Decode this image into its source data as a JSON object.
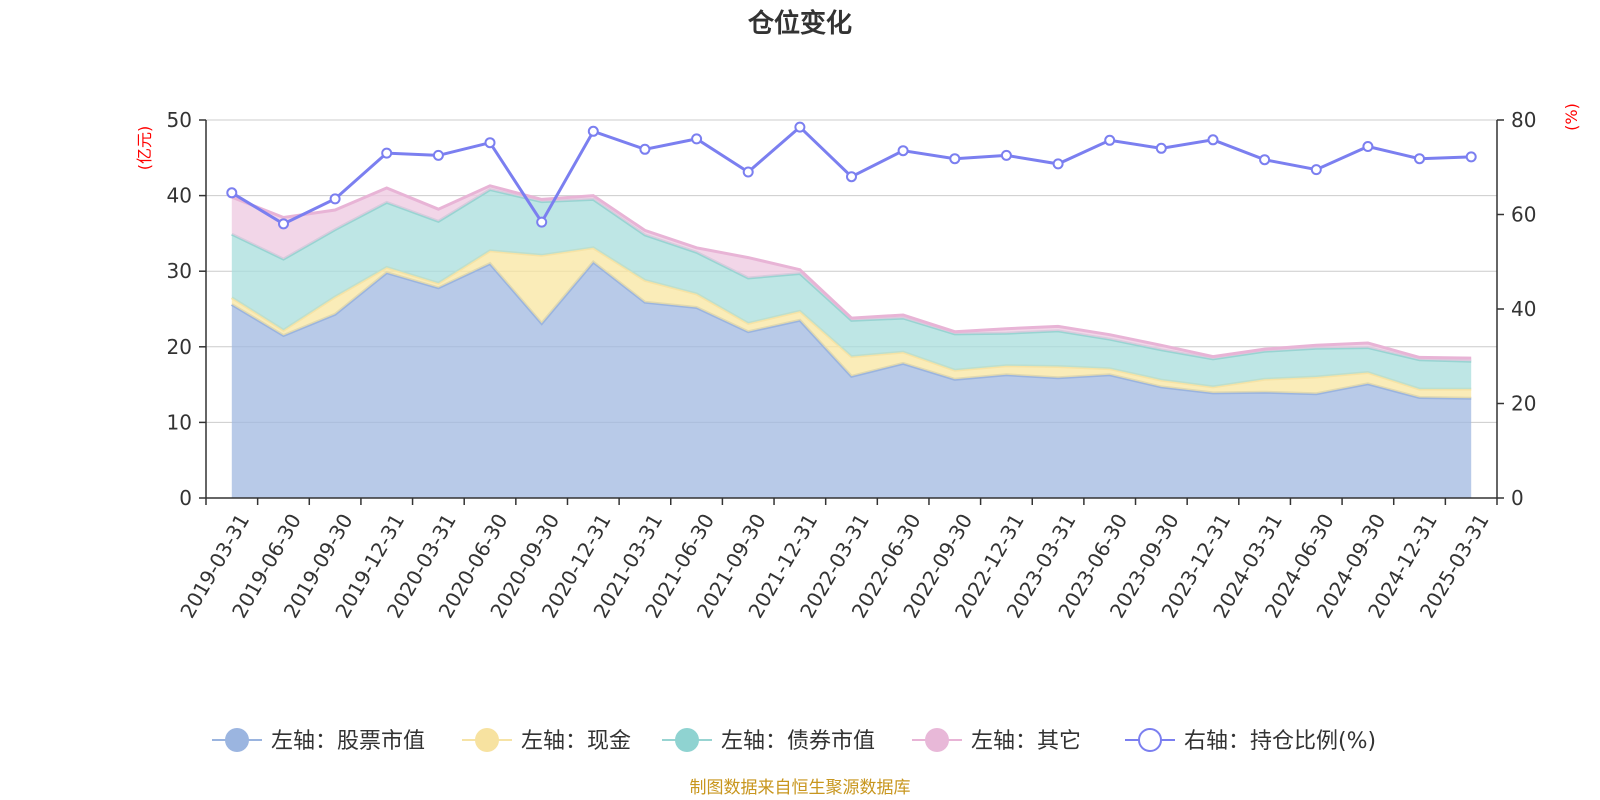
{
  "title": "仓位变化",
  "left_unit": "(亿元)",
  "right_unit": "(%)",
  "source": "制图数据来自恒生聚源数据库",
  "chart_data": {
    "type": "area",
    "title": "仓位变化",
    "categories": [
      "2019-03-31",
      "2019-06-30",
      "2019-09-30",
      "2019-12-31",
      "2020-03-31",
      "2020-06-30",
      "2020-09-30",
      "2020-12-31",
      "2021-03-31",
      "2021-06-30",
      "2021-09-30",
      "2021-12-31",
      "2022-03-31",
      "2022-06-30",
      "2022-09-30",
      "2022-12-31",
      "2023-03-31",
      "2023-06-30",
      "2023-09-30",
      "2023-12-31",
      "2024-03-31",
      "2024-06-30",
      "2024-09-30",
      "2024-12-31",
      "2025-03-31"
    ],
    "left_axis": {
      "label": "(亿元)",
      "min": 0,
      "max": 50,
      "ticks": [
        0,
        10,
        20,
        30,
        40,
        50
      ]
    },
    "right_axis": {
      "label": "(%)",
      "min": 0,
      "max": 80,
      "ticks": [
        0,
        20,
        40,
        60,
        80
      ]
    },
    "stacked": true,
    "grid": true,
    "legend_position": "bottom",
    "series": [
      {
        "name": "左轴：股票市值",
        "axis": "left",
        "color": "#a0b8e0",
        "line": "#9ab4df",
        "values": [
          25.6,
          21.5,
          24.3,
          29.8,
          27.8,
          31.0,
          23.1,
          31.2,
          25.9,
          25.2,
          22.0,
          23.5,
          16.1,
          17.8,
          15.7,
          16.3,
          15.9,
          16.3,
          14.7,
          13.9,
          14.0,
          13.8,
          15.1,
          13.3,
          13.2
        ]
      },
      {
        "name": "左轴：现金",
        "axis": "left",
        "color": "#f8e6a0",
        "line": "#f6e3a6",
        "values": [
          0.9,
          0.7,
          2.3,
          0.7,
          0.6,
          1.7,
          9.0,
          1.9,
          2.9,
          1.8,
          1.1,
          1.2,
          2.6,
          1.5,
          1.2,
          1.2,
          1.5,
          0.8,
          0.9,
          0.8,
          1.7,
          2.2,
          1.5,
          1.1,
          1.2
        ]
      },
      {
        "name": "左轴：债券市值",
        "axis": "left",
        "color": "#a8dedc",
        "line": "#98d4d2",
        "values": [
          8.4,
          9.4,
          8.9,
          8.6,
          8.2,
          8.1,
          7.1,
          6.4,
          6.0,
          5.5,
          6.0,
          5.0,
          4.8,
          4.5,
          4.8,
          4.3,
          4.7,
          3.9,
          4.0,
          3.7,
          3.7,
          3.8,
          3.3,
          3.9,
          3.7
        ]
      },
      {
        "name": "左轴：其它",
        "axis": "left",
        "color": "#eec8e0",
        "line": "#e8b4d6",
        "values": [
          4.9,
          5.5,
          2.6,
          1.9,
          1.6,
          0.5,
          0.3,
          0.5,
          0.6,
          0.6,
          2.7,
          0.5,
          0.3,
          0.4,
          0.3,
          0.6,
          0.6,
          0.6,
          0.6,
          0.3,
          0.3,
          0.4,
          0.6,
          0.3,
          0.4
        ]
      },
      {
        "name": "右轴：持仓比例(%)",
        "axis": "right",
        "type": "line",
        "color": "#7b7ff0",
        "values": [
          64.6,
          58.0,
          63.3,
          73.0,
          72.5,
          75.2,
          58.4,
          77.6,
          73.8,
          76.0,
          69.0,
          78.5,
          68.0,
          73.5,
          71.8,
          72.5,
          70.7,
          75.7,
          74.0,
          75.8,
          71.6,
          69.5,
          74.4,
          71.8,
          72.2
        ]
      }
    ]
  }
}
